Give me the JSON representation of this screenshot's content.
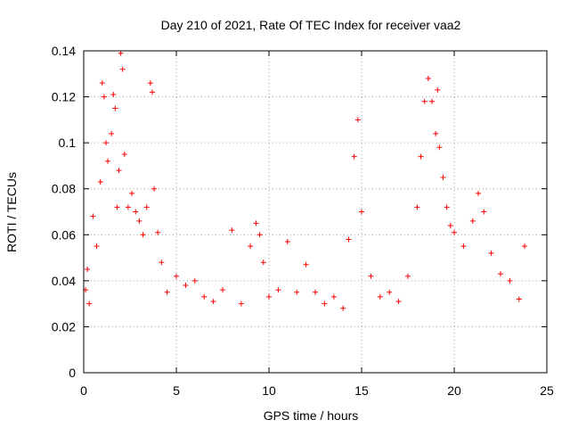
{
  "chart_data": {
    "type": "scatter",
    "title": "Day 210 of 2021, Rate Of TEC Index for receiver vaa2",
    "xlabel": "GPS time / hours",
    "ylabel": "ROTI / TECUs",
    "xlim": [
      0,
      25
    ],
    "ylim": [
      0,
      0.14
    ],
    "xticks": [
      0,
      5,
      10,
      15,
      20,
      25
    ],
    "yticks": [
      0,
      0.02,
      0.04,
      0.06,
      0.08,
      0.1,
      0.12,
      0.14
    ],
    "ytick_labels": [
      "0",
      "0.02",
      "0.04",
      "0.06",
      "0.08",
      "0.1",
      "0.12",
      "0.14"
    ],
    "grid": true,
    "marker": "+",
    "series": [
      {
        "color": "#ff0000",
        "x": [
          0.1,
          0.2,
          0.3,
          0.5,
          0.7,
          0.9,
          1.0,
          1.1,
          1.2,
          1.3,
          1.5,
          1.6,
          1.7,
          1.8,
          1.9,
          2.0,
          2.1,
          2.2,
          2.4,
          2.6,
          2.8,
          3.0,
          3.2,
          3.4,
          3.6,
          3.7,
          3.8,
          4.0,
          4.2,
          4.5,
          5.0,
          5.5,
          6.0,
          6.5,
          7.0,
          7.5,
          8.0,
          8.5,
          9.0,
          9.3,
          9.5,
          9.7,
          10.0,
          10.5,
          11.0,
          11.5,
          12.0,
          12.5,
          13.0,
          13.5,
          14.0,
          14.3,
          14.6,
          14.8,
          15.0,
          15.5,
          16.0,
          16.5,
          17.0,
          17.5,
          18.0,
          18.2,
          18.4,
          18.6,
          18.8,
          19.0,
          19.1,
          19.2,
          19.4,
          19.6,
          19.8,
          20.0,
          20.5,
          21.0,
          21.3,
          21.6,
          22.0,
          22.5,
          23.0,
          23.5,
          23.8
        ],
        "y": [
          0.036,
          0.045,
          0.03,
          0.068,
          0.055,
          0.083,
          0.126,
          0.12,
          0.1,
          0.092,
          0.104,
          0.121,
          0.115,
          0.072,
          0.088,
          0.139,
          0.132,
          0.095,
          0.072,
          0.078,
          0.07,
          0.066,
          0.06,
          0.072,
          0.126,
          0.122,
          0.08,
          0.061,
          0.048,
          0.035,
          0.042,
          0.038,
          0.04,
          0.033,
          0.031,
          0.036,
          0.062,
          0.03,
          0.055,
          0.065,
          0.06,
          0.048,
          0.033,
          0.036,
          0.057,
          0.035,
          0.047,
          0.035,
          0.03,
          0.033,
          0.028,
          0.058,
          0.094,
          0.11,
          0.07,
          0.042,
          0.033,
          0.035,
          0.031,
          0.042,
          0.072,
          0.094,
          0.118,
          0.128,
          0.118,
          0.104,
          0.123,
          0.098,
          0.085,
          0.072,
          0.064,
          0.061,
          0.055,
          0.066,
          0.078,
          0.07,
          0.052,
          0.043,
          0.04,
          0.032,
          0.055
        ]
      }
    ]
  }
}
